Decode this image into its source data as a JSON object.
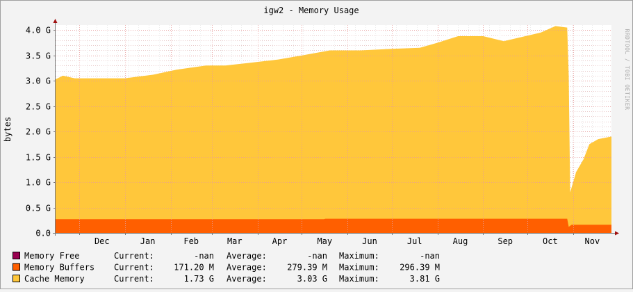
{
  "chart_data": {
    "type": "area",
    "title": "igw2 - Memory Usage",
    "ylabel": "bytes",
    "watermark": "RRDTOOL / TOBI OETIKER",
    "ylim": [
      0,
      4.1
    ],
    "y_ticks": [
      {
        "value": 0,
        "label": "0.0"
      },
      {
        "value": 0.5,
        "label": "0.5 G"
      },
      {
        "value": 1.0,
        "label": "1.0 G"
      },
      {
        "value": 1.5,
        "label": "1.5 G"
      },
      {
        "value": 2.0,
        "label": "2.0 G"
      },
      {
        "value": 2.5,
        "label": "2.5 G"
      },
      {
        "value": 3.0,
        "label": "3.0 G"
      },
      {
        "value": 3.5,
        "label": "3.5 G"
      },
      {
        "value": 4.0,
        "label": "4.0 G"
      }
    ],
    "x_start": "2014-11-15",
    "x_end": "2015-11-27",
    "month_ticks": [
      {
        "date": "2014-12-01",
        "label": "Dec"
      },
      {
        "date": "2015-01-01",
        "label": "Jan"
      },
      {
        "date": "2015-02-01",
        "label": "Feb"
      },
      {
        "date": "2015-03-01",
        "label": "Mar"
      },
      {
        "date": "2015-04-01",
        "label": "Apr"
      },
      {
        "date": "2015-05-01",
        "label": "May"
      },
      {
        "date": "2015-06-01",
        "label": "Jun"
      },
      {
        "date": "2015-07-01",
        "label": "Jul"
      },
      {
        "date": "2015-08-01",
        "label": "Aug"
      },
      {
        "date": "2015-09-01",
        "label": "Sep"
      },
      {
        "date": "2015-10-01",
        "label": "Oct"
      },
      {
        "date": "2015-11-01",
        "label": "Nov"
      }
    ],
    "series": [
      {
        "name": "Memory Buffers",
        "color": "#ff5f00",
        "stack": "bottom",
        "points": [
          [
            "2014-11-15",
            0.27
          ],
          [
            "2015-05-16",
            0.27
          ],
          [
            "2015-05-17",
            0.28
          ],
          [
            "2015-10-28",
            0.28
          ],
          [
            "2015-10-29",
            0.12
          ],
          [
            "2015-10-31",
            0.16
          ],
          [
            "2015-11-27",
            0.16
          ]
        ]
      },
      {
        "name": "Cache Memory",
        "color": "#ffc73b",
        "stack": "total",
        "points": [
          [
            "2014-11-15",
            3.03
          ],
          [
            "2014-11-20",
            3.1
          ],
          [
            "2014-11-28",
            3.05
          ],
          [
            "2014-12-15",
            3.05
          ],
          [
            "2015-01-01",
            3.05
          ],
          [
            "2015-01-20",
            3.12
          ],
          [
            "2015-02-05",
            3.22
          ],
          [
            "2015-02-25",
            3.3
          ],
          [
            "2015-03-10",
            3.3
          ],
          [
            "2015-03-25",
            3.35
          ],
          [
            "2015-04-15",
            3.42
          ],
          [
            "2015-05-01",
            3.5
          ],
          [
            "2015-05-20",
            3.6
          ],
          [
            "2015-06-10",
            3.6
          ],
          [
            "2015-07-01",
            3.63
          ],
          [
            "2015-07-20",
            3.65
          ],
          [
            "2015-08-01",
            3.75
          ],
          [
            "2015-08-15",
            3.88
          ],
          [
            "2015-09-01",
            3.88
          ],
          [
            "2015-09-15",
            3.78
          ],
          [
            "2015-09-25",
            3.85
          ],
          [
            "2015-10-10",
            3.95
          ],
          [
            "2015-10-20",
            4.08
          ],
          [
            "2015-10-28",
            4.05
          ],
          [
            "2015-10-29",
            3.1
          ],
          [
            "2015-10-30",
            0.8
          ],
          [
            "2015-11-03",
            1.2
          ],
          [
            "2015-11-08",
            1.45
          ],
          [
            "2015-11-12",
            1.75
          ],
          [
            "2015-11-18",
            1.85
          ],
          [
            "2015-11-27",
            1.9
          ]
        ]
      }
    ],
    "legend": [
      {
        "name": "Memory Free",
        "color": "#990050",
        "current_label": "Current:",
        "current": "-nan",
        "average_label": "Average:",
        "average": "-nan",
        "maximum_label": "Maximum:",
        "maximum": "-nan"
      },
      {
        "name": "Memory Buffers",
        "color": "#ff5f00",
        "current_label": "Current:",
        "current": "171.20 M",
        "average_label": "Average:",
        "average": "279.39 M",
        "maximum_label": "Maximum:",
        "maximum": "296.39 M"
      },
      {
        "name": "Cache Memory",
        "color": "#ffc73b",
        "current_label": "Current:",
        "current": "1.73 G",
        "average_label": "Average:",
        "average": "3.03 G",
        "maximum_label": "Maximum:",
        "maximum": "3.81 G"
      }
    ],
    "grid": true
  }
}
